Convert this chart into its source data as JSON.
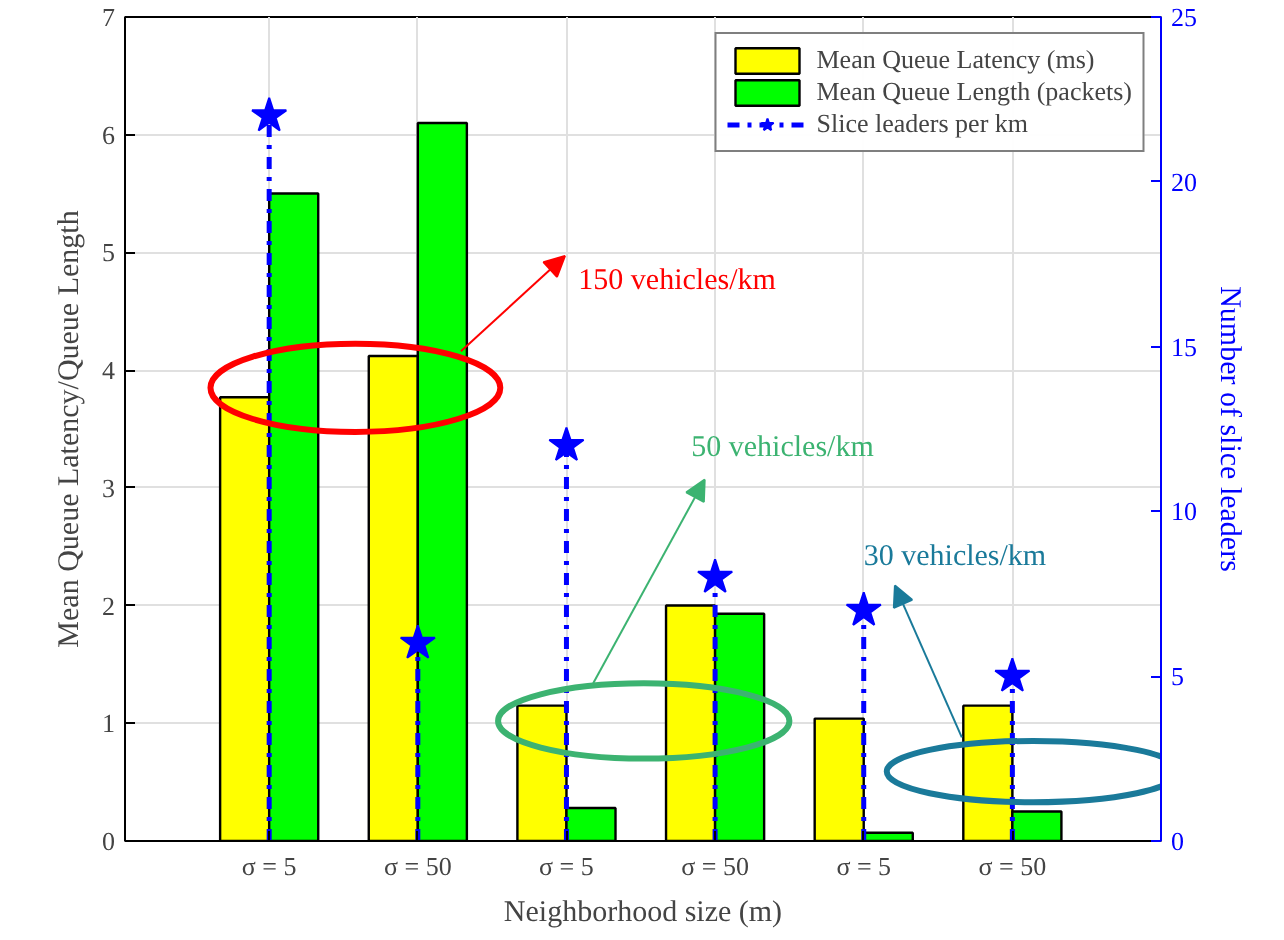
{
  "chart_data": {
    "type": "bar",
    "xlabel": "Neighborhood size (m)",
    "ylabel": "Mean Queue Latency/Queue Length",
    "y2label": "Number of slice leaders",
    "categories": [
      "σ = 5",
      "σ = 50",
      "σ = 5",
      "σ = 50",
      "σ = 5",
      "σ = 50"
    ],
    "series": [
      {
        "name": "Mean Queue Latency (ms)",
        "color": "#ffff00",
        "values": [
          3.77,
          4.12,
          1.15,
          2.0,
          1.04,
          1.15
        ]
      },
      {
        "name": "Mean Queue Length (packets)",
        "color": "#00ff00",
        "values": [
          5.5,
          6.1,
          0.28,
          1.93,
          0.07,
          0.25
        ]
      },
      {
        "name": "Slice leaders per km",
        "color": "#0000ff",
        "type": "lollipop",
        "axis": "y2",
        "marker": "star",
        "line_style": "dashed",
        "values": [
          22,
          6,
          12,
          8,
          7,
          5
        ]
      }
    ],
    "ylim": [
      0,
      7
    ],
    "yticks": [
      0,
      1,
      2,
      3,
      4,
      5,
      6,
      7
    ],
    "y2lim": [
      0,
      25
    ],
    "y2ticks": [
      0,
      5,
      10,
      15,
      20,
      25
    ],
    "grid": true,
    "legend": "top right",
    "annotations": [
      "150 vehicles/km",
      "50 vehicles/km",
      "30 vehicles/km"
    ]
  }
}
